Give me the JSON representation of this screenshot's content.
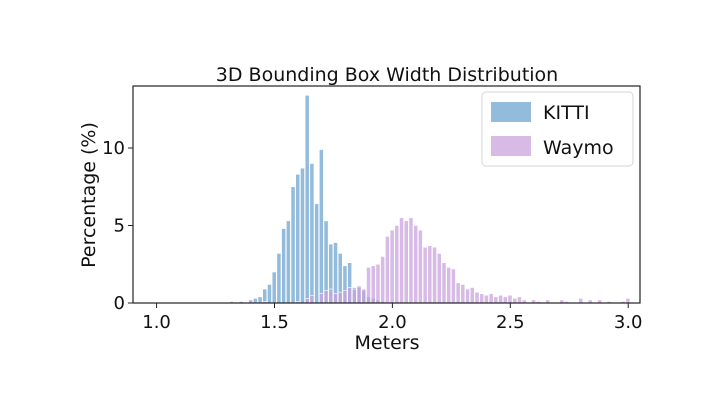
{
  "chart_data": {
    "type": "bar",
    "title": "3D Bounding Box Width Distribution",
    "xlabel": "Meters",
    "ylabel": "Percentage (%)",
    "xlim": [
      0.9,
      3.05
    ],
    "ylim": [
      0,
      14
    ],
    "xticks": [
      "1.0",
      "1.5",
      "2.0",
      "2.5",
      "3.0"
    ],
    "yticks": [
      "0",
      "5",
      "10"
    ],
    "legend_position": "top-right",
    "bin_width": 0.02,
    "series": [
      {
        "name": "KITTI",
        "color": "#7fafd6",
        "opacity": 0.85,
        "bins": [
          {
            "x": 1.36,
            "y": 0.1
          },
          {
            "x": 1.4,
            "y": 0.2
          },
          {
            "x": 1.42,
            "y": 0.3
          },
          {
            "x": 1.44,
            "y": 0.4
          },
          {
            "x": 1.46,
            "y": 0.9
          },
          {
            "x": 1.48,
            "y": 1.2
          },
          {
            "x": 1.5,
            "y": 2.0
          },
          {
            "x": 1.52,
            "y": 3.2
          },
          {
            "x": 1.54,
            "y": 4.8
          },
          {
            "x": 1.56,
            "y": 5.3
          },
          {
            "x": 1.58,
            "y": 7.5
          },
          {
            "x": 1.6,
            "y": 8.3
          },
          {
            "x": 1.62,
            "y": 8.7
          },
          {
            "x": 1.64,
            "y": 13.4
          },
          {
            "x": 1.66,
            "y": 9.0
          },
          {
            "x": 1.68,
            "y": 6.4
          },
          {
            "x": 1.7,
            "y": 9.9
          },
          {
            "x": 1.72,
            "y": 5.3
          },
          {
            "x": 1.74,
            "y": 3.8
          },
          {
            "x": 1.76,
            "y": 3.9
          },
          {
            "x": 1.78,
            "y": 3.2
          },
          {
            "x": 1.8,
            "y": 2.4
          },
          {
            "x": 1.82,
            "y": 2.6
          },
          {
            "x": 1.84,
            "y": 1.0
          },
          {
            "x": 1.86,
            "y": 1.0
          },
          {
            "x": 1.88,
            "y": 0.8
          },
          {
            "x": 1.9,
            "y": 0.4
          },
          {
            "x": 1.92,
            "y": 0.3
          },
          {
            "x": 1.94,
            "y": 0.2
          },
          {
            "x": 1.96,
            "y": 0.1
          }
        ]
      },
      {
        "name": "Waymo",
        "color": "#c9a3dc",
        "opacity": 0.75,
        "bins": [
          {
            "x": 1.32,
            "y": 0.1
          },
          {
            "x": 1.36,
            "y": 0.1
          },
          {
            "x": 1.4,
            "y": 0.2
          },
          {
            "x": 1.46,
            "y": 0.1
          },
          {
            "x": 1.6,
            "y": 0.1
          },
          {
            "x": 1.64,
            "y": 0.3
          },
          {
            "x": 1.66,
            "y": 0.5
          },
          {
            "x": 1.7,
            "y": 0.6
          },
          {
            "x": 1.72,
            "y": 0.8
          },
          {
            "x": 1.74,
            "y": 0.9
          },
          {
            "x": 1.76,
            "y": 0.6
          },
          {
            "x": 1.78,
            "y": 0.7
          },
          {
            "x": 1.8,
            "y": 0.8
          },
          {
            "x": 1.82,
            "y": 1.0
          },
          {
            "x": 1.84,
            "y": 0.9
          },
          {
            "x": 1.86,
            "y": 1.1
          },
          {
            "x": 1.88,
            "y": 0.9
          },
          {
            "x": 1.9,
            "y": 2.3
          },
          {
            "x": 1.92,
            "y": 2.4
          },
          {
            "x": 1.94,
            "y": 2.5
          },
          {
            "x": 1.96,
            "y": 3.0
          },
          {
            "x": 1.98,
            "y": 4.3
          },
          {
            "x": 2.0,
            "y": 4.7
          },
          {
            "x": 2.02,
            "y": 5.0
          },
          {
            "x": 2.04,
            "y": 5.5
          },
          {
            "x": 2.06,
            "y": 5.3
          },
          {
            "x": 2.08,
            "y": 5.5
          },
          {
            "x": 2.1,
            "y": 5.0
          },
          {
            "x": 2.12,
            "y": 4.7
          },
          {
            "x": 2.14,
            "y": 3.6
          },
          {
            "x": 2.16,
            "y": 3.7
          },
          {
            "x": 2.18,
            "y": 3.6
          },
          {
            "x": 2.2,
            "y": 3.2
          },
          {
            "x": 2.22,
            "y": 2.6
          },
          {
            "x": 2.24,
            "y": 2.3
          },
          {
            "x": 2.26,
            "y": 2.2
          },
          {
            "x": 2.28,
            "y": 1.3
          },
          {
            "x": 2.3,
            "y": 1.2
          },
          {
            "x": 2.32,
            "y": 0.9
          },
          {
            "x": 2.34,
            "y": 1.0
          },
          {
            "x": 2.36,
            "y": 0.7
          },
          {
            "x": 2.38,
            "y": 0.6
          },
          {
            "x": 2.4,
            "y": 0.5
          },
          {
            "x": 2.42,
            "y": 0.6
          },
          {
            "x": 2.44,
            "y": 0.4
          },
          {
            "x": 2.46,
            "y": 0.5
          },
          {
            "x": 2.48,
            "y": 0.4
          },
          {
            "x": 2.5,
            "y": 0.5
          },
          {
            "x": 2.52,
            "y": 0.3
          },
          {
            "x": 2.54,
            "y": 0.4
          },
          {
            "x": 2.56,
            "y": 0.2
          },
          {
            "x": 2.6,
            "y": 0.2
          },
          {
            "x": 2.62,
            "y": 0.1
          },
          {
            "x": 2.66,
            "y": 0.2
          },
          {
            "x": 2.72,
            "y": 0.2
          },
          {
            "x": 2.74,
            "y": 0.1
          },
          {
            "x": 2.8,
            "y": 0.3
          },
          {
            "x": 2.84,
            "y": 0.2
          },
          {
            "x": 2.88,
            "y": 0.2
          },
          {
            "x": 2.92,
            "y": 0.1
          },
          {
            "x": 2.98,
            "y": 0.1
          },
          {
            "x": 3.0,
            "y": 0.3
          }
        ]
      }
    ]
  }
}
